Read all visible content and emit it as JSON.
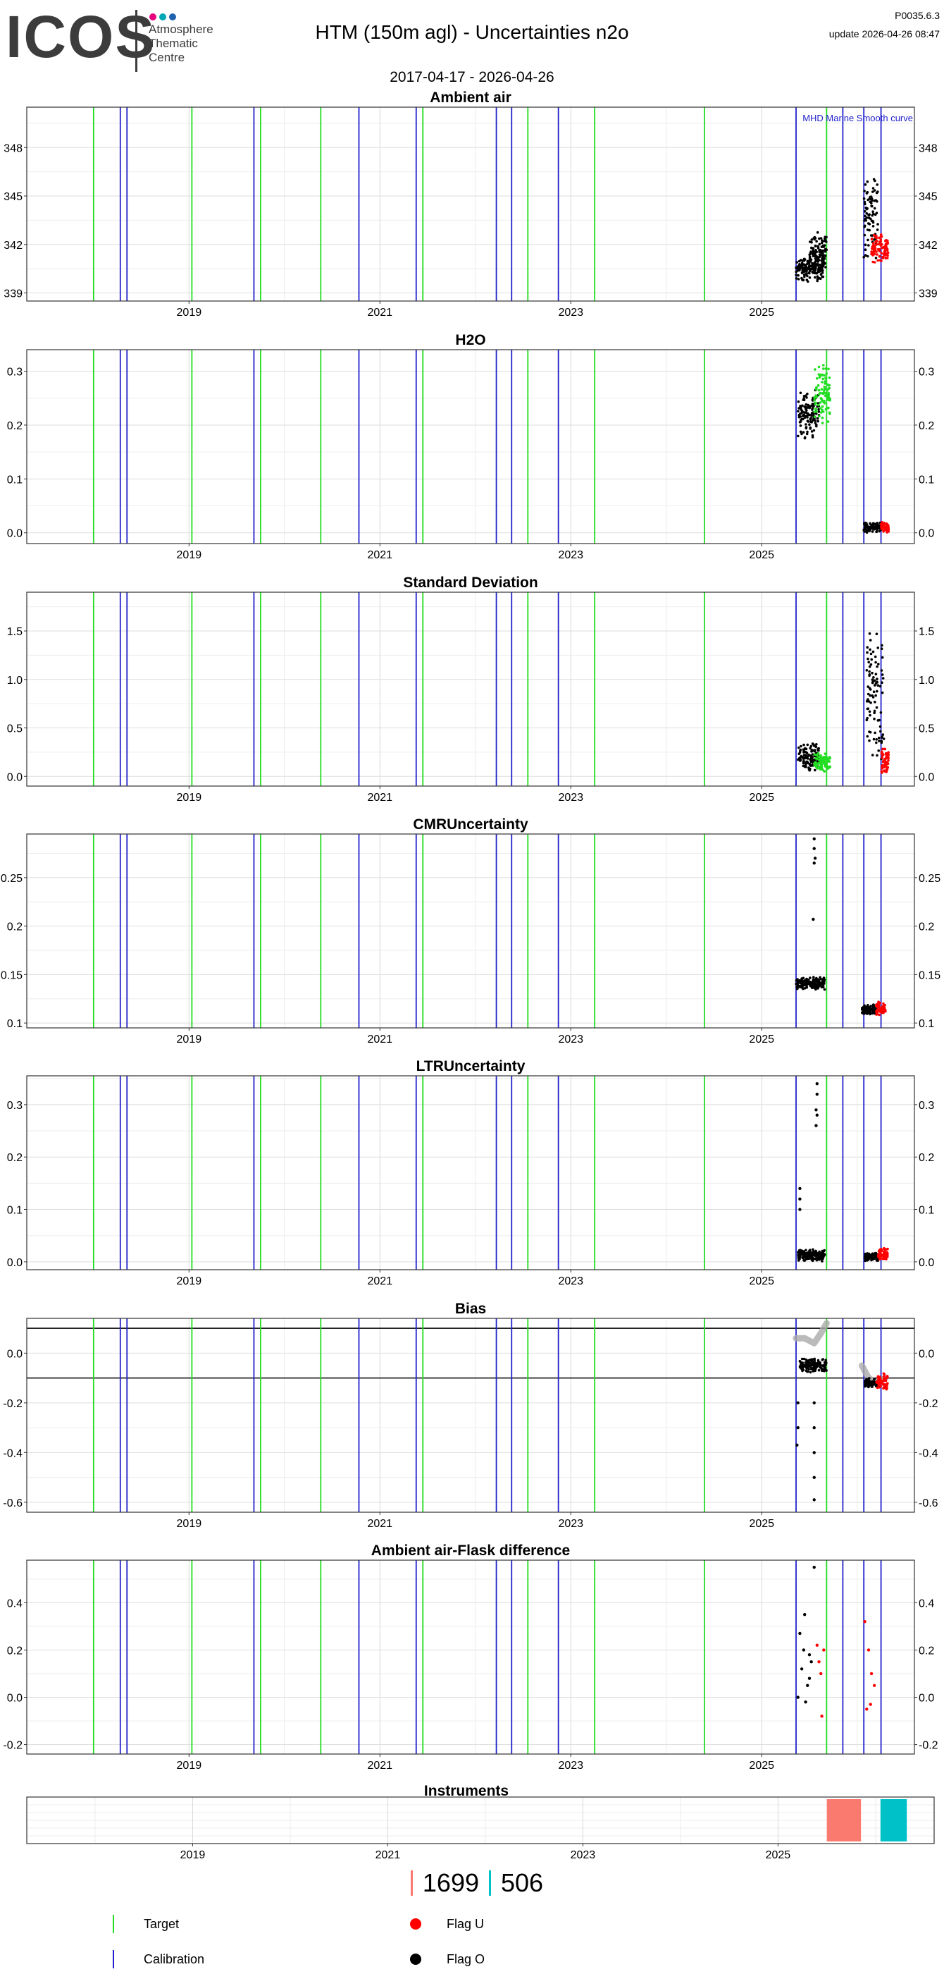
{
  "header": {
    "logo_word": "ICOS",
    "logo_lines": [
      "Atmosphere",
      "Thematic",
      "Centre"
    ],
    "logo_dot_colors": [
      "#e6007e",
      "#00a7b5",
      "#1f63ae"
    ],
    "title": "HTM  (150m agl) - Uncertainties n2o",
    "version": "P0035.6.3",
    "update": "update  2026-04-26 08:47",
    "date_range": "2017-04-17 - 2026-04-26"
  },
  "colors": {
    "target": "#22dd22",
    "calibration": "#2222cc",
    "flag_u": "#ff0000",
    "flag_o": "#000000",
    "grey_curve": "#aaaaaa",
    "instrument_1": "#fa7a70",
    "instrument_2": "#00c0c8"
  },
  "chart_data": {
    "type": "scatter",
    "x_range": [
      2017.3,
      2026.6
    ],
    "x_ticks": [
      "2019",
      "2021",
      "2023",
      "2025"
    ],
    "x_tick_values": [
      2019,
      2021,
      2023,
      2025
    ],
    "target_lines": [
      2018.0,
      2019.03,
      2019.75,
      2020.38,
      2021.45,
      2022.55,
      2023.25,
      2024.4,
      2025.68
    ],
    "calibration_lines": [
      2018.28,
      2018.35,
      2019.68,
      2020.78,
      2021.38,
      2022.22,
      2022.38,
      2022.87,
      2025.36,
      2025.85,
      2026.07,
      2026.25
    ],
    "panels": [
      {
        "title": "Ambient air",
        "ylim": [
          338.5,
          350.5
        ],
        "y_ticks": [
          339,
          342,
          345,
          348
        ],
        "annotation": "MHD Marine Smooth curve",
        "clusters": [
          {
            "x_from": 2025.36,
            "x_to": 2025.65,
            "y_low": 339.6,
            "y_high": 341.4,
            "flag": "O"
          },
          {
            "x_from": 2025.5,
            "x_to": 2025.68,
            "y_low": 340.4,
            "y_high": 342.8,
            "flag": "O"
          },
          {
            "x_from": 2026.07,
            "x_to": 2026.22,
            "y_low": 341.0,
            "y_high": 346.5,
            "flag": "O"
          },
          {
            "x_from": 2026.15,
            "x_to": 2026.33,
            "y_low": 340.8,
            "y_high": 342.8,
            "flag": "U"
          }
        ]
      },
      {
        "title": "H2O",
        "ylim": [
          -0.02,
          0.34
        ],
        "y_ticks": [
          0.0,
          0.1,
          0.2,
          0.3
        ],
        "annotation": "",
        "clusters": [
          {
            "x_from": 2025.38,
            "x_to": 2025.6,
            "y_low": 0.17,
            "y_high": 0.27,
            "flag": "O"
          },
          {
            "x_from": 2025.55,
            "x_to": 2025.72,
            "y_low": 0.2,
            "y_high": 0.32,
            "flag": "T"
          },
          {
            "x_from": 2026.07,
            "x_to": 2026.25,
            "y_low": 0.0,
            "y_high": 0.02,
            "flag": "O"
          },
          {
            "x_from": 2026.25,
            "x_to": 2026.33,
            "y_low": 0.0,
            "y_high": 0.02,
            "flag": "U"
          }
        ]
      },
      {
        "title": "Standard Deviation",
        "ylim": [
          -0.1,
          1.9
        ],
        "y_ticks": [
          0.0,
          0.5,
          1.0,
          1.5
        ],
        "annotation": "",
        "clusters": [
          {
            "x_from": 2025.38,
            "x_to": 2025.6,
            "y_low": 0.03,
            "y_high": 0.35,
            "flag": "O"
          },
          {
            "x_from": 2025.55,
            "x_to": 2025.72,
            "y_low": 0.04,
            "y_high": 0.25,
            "flag": "T"
          },
          {
            "x_from": 2026.1,
            "x_to": 2026.28,
            "y_low": 0.05,
            "y_high": 1.6,
            "flag": "O"
          },
          {
            "x_from": 2026.25,
            "x_to": 2026.33,
            "y_low": 0.02,
            "y_high": 0.3,
            "flag": "U"
          }
        ]
      },
      {
        "title": "CMRUncertainty",
        "ylim": [
          0.095,
          0.295
        ],
        "y_ticks": [
          0.1,
          0.15,
          0.2,
          0.25
        ],
        "annotation": "",
        "clusters": [
          {
            "x_from": 2025.36,
            "x_to": 2025.66,
            "y_low": 0.134,
            "y_high": 0.148,
            "flag": "O"
          },
          {
            "x_from": 2026.05,
            "x_to": 2026.22,
            "y_low": 0.108,
            "y_high": 0.12,
            "flag": "O"
          },
          {
            "x_from": 2026.2,
            "x_to": 2026.3,
            "y_low": 0.107,
            "y_high": 0.123,
            "flag": "U"
          }
        ],
        "points": [
          [
            2025.55,
            0.29
          ],
          [
            2025.55,
            0.28
          ],
          [
            2025.56,
            0.27
          ],
          [
            2025.55,
            0.265
          ],
          [
            2025.54,
            0.207
          ]
        ]
      },
      {
        "title": "LTRUncertainty",
        "ylim": [
          -0.015,
          0.355
        ],
        "y_ticks": [
          0.0,
          0.1,
          0.2,
          0.3
        ],
        "annotation": "",
        "clusters": [
          {
            "x_from": 2025.38,
            "x_to": 2025.66,
            "y_low": 0.0,
            "y_high": 0.025,
            "flag": "O"
          },
          {
            "x_from": 2026.08,
            "x_to": 2026.24,
            "y_low": 0.0,
            "y_high": 0.02,
            "flag": "O"
          },
          {
            "x_from": 2026.22,
            "x_to": 2026.32,
            "y_low": 0.0,
            "y_high": 0.03,
            "flag": "U"
          }
        ],
        "points": [
          [
            2025.58,
            0.34
          ],
          [
            2025.58,
            0.32
          ],
          [
            2025.57,
            0.29
          ],
          [
            2025.58,
            0.28
          ],
          [
            2025.57,
            0.26
          ],
          [
            2025.4,
            0.14
          ],
          [
            2025.4,
            0.12
          ],
          [
            2025.4,
            0.1
          ]
        ]
      },
      {
        "title": "Bias",
        "ylim": [
          -0.64,
          0.14
        ],
        "y_ticks": [
          -0.6,
          -0.4,
          -0.2,
          0.0
        ],
        "annotation": "",
        "hlines": [
          0.1,
          -0.1
        ],
        "clusters": [
          {
            "x_from": 2025.4,
            "x_to": 2025.68,
            "y_low": -0.08,
            "y_high": -0.02,
            "flag": "O"
          },
          {
            "x_from": 2026.08,
            "x_to": 2026.24,
            "y_low": -0.14,
            "y_high": -0.1,
            "flag": "O"
          },
          {
            "x_from": 2026.2,
            "x_to": 2026.32,
            "y_low": -0.15,
            "y_high": -0.08,
            "flag": "U"
          }
        ],
        "points": [
          [
            2025.38,
            -0.2
          ],
          [
            2025.38,
            -0.3
          ],
          [
            2025.37,
            -0.37
          ],
          [
            2025.55,
            -0.2
          ],
          [
            2025.55,
            -0.3
          ],
          [
            2025.55,
            -0.4
          ],
          [
            2025.55,
            -0.5
          ],
          [
            2025.55,
            -0.59
          ]
        ],
        "grey_curve": [
          [
            2025.36,
            0.06
          ],
          [
            2025.45,
            0.06
          ],
          [
            2025.55,
            0.04
          ],
          [
            2025.62,
            0.08
          ],
          [
            2025.68,
            0.12
          ],
          [
            2026.05,
            -0.05
          ],
          [
            2026.12,
            -0.1
          ],
          [
            2026.2,
            -0.12
          ],
          [
            2026.3,
            -0.1
          ]
        ]
      },
      {
        "title": "Ambient air-Flask difference",
        "ylim": [
          -0.24,
          0.58
        ],
        "y_ticks": [
          -0.2,
          0.0,
          0.2,
          0.4
        ],
        "annotation": "",
        "points_o": [
          [
            2025.4,
            0.27
          ],
          [
            2025.45,
            0.35
          ],
          [
            2025.5,
            0.18
          ],
          [
            2025.42,
            0.12
          ],
          [
            2025.48,
            0.05
          ],
          [
            2025.55,
            0.55
          ],
          [
            2025.52,
            0.15
          ],
          [
            2025.44,
            0.2
          ],
          [
            2025.5,
            0.08
          ],
          [
            2025.46,
            -0.02
          ],
          [
            2025.38,
            0.0
          ]
        ],
        "points_u": [
          [
            2025.58,
            0.22
          ],
          [
            2025.62,
            0.1
          ],
          [
            2025.6,
            0.15
          ],
          [
            2025.65,
            0.2
          ],
          [
            2025.63,
            -0.08
          ],
          [
            2026.08,
            0.32
          ],
          [
            2026.12,
            0.2
          ],
          [
            2026.15,
            0.1
          ],
          [
            2026.1,
            -0.05
          ],
          [
            2026.18,
            0.05
          ],
          [
            2026.14,
            -0.03
          ]
        ]
      }
    ],
    "instruments": {
      "title": "Instruments",
      "bars": [
        {
          "x_from": 2025.5,
          "x_to": 2025.85,
          "color_key": "instrument_1"
        },
        {
          "x_from": 2026.05,
          "x_to": 2026.32,
          "color_key": "instrument_2"
        }
      ]
    }
  },
  "counts": {
    "first": "1699",
    "second": "506"
  },
  "legend": {
    "target": "Target",
    "calibration": "Calibration",
    "flag_u": "Flag U",
    "flag_o": "Flag O"
  }
}
